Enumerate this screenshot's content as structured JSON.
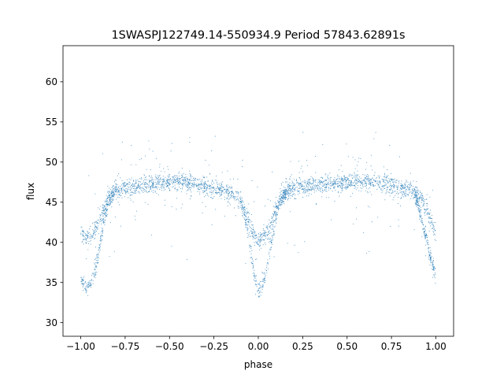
{
  "chart_data": {
    "type": "scatter",
    "title": "1SWASPJ122749.14-550934.9 Period 57843.62891s",
    "xlabel": "phase",
    "ylabel": "flux",
    "xlim": [
      -1.1,
      1.1
    ],
    "ylim": [
      28.3,
      64.5
    ],
    "xticks": [
      -1.0,
      -0.75,
      -0.5,
      -0.25,
      0.0,
      0.25,
      0.5,
      0.75,
      1.0
    ],
    "xtick_labels": [
      "−1.00",
      "−0.75",
      "−0.50",
      "−0.25",
      "0.00",
      "0.25",
      "0.50",
      "0.75",
      "1.00"
    ],
    "yticks": [
      30,
      35,
      40,
      45,
      50,
      55,
      60
    ],
    "ytick_labels": [
      "30",
      "35",
      "40",
      "45",
      "50",
      "55",
      "60"
    ],
    "grid": false,
    "legend": "none",
    "point_color": "#1f77b4",
    "series": [
      {
        "phase": [
          -1.0,
          -0.97,
          -0.94,
          -0.9,
          -0.85,
          -0.8,
          -0.7,
          -0.6,
          -0.5,
          -0.4,
          -0.3,
          -0.2,
          -0.15,
          -0.1,
          -0.07,
          -0.03,
          0.0,
          0.03,
          0.06,
          0.1,
          0.13,
          0.17,
          0.2,
          0.25,
          0.35,
          0.45,
          0.55,
          0.65,
          0.75,
          0.85,
          0.9,
          0.93,
          0.96,
          1.0
        ],
        "flux": [
          41.0,
          40.5,
          40.8,
          42.5,
          45.0,
          46.5,
          47.0,
          47.3,
          47.6,
          47.5,
          47.0,
          46.6,
          46.0,
          45.2,
          43.5,
          41.2,
          40.2,
          40.6,
          41.5,
          44.0,
          45.8,
          46.5,
          46.8,
          46.9,
          47.2,
          47.4,
          47.6,
          47.4,
          47.1,
          46.6,
          46.0,
          45.0,
          43.5,
          41.2
        ]
      },
      {
        "phase": [
          -1.0,
          -0.97,
          -0.94,
          -0.9,
          -0.87,
          -0.84,
          -0.8,
          -0.1,
          -0.07,
          -0.04,
          -0.02,
          0.0,
          0.02,
          0.04,
          0.07,
          0.1,
          0.13,
          0.16,
          0.2,
          0.88,
          0.91,
          0.94,
          0.97,
          1.0
        ],
        "flux": [
          35.5,
          34.2,
          34.8,
          38.5,
          42.5,
          45.5,
          46.5,
          45.0,
          42.5,
          38.5,
          35.5,
          34.0,
          34.2,
          36.0,
          39.5,
          43.0,
          45.5,
          46.3,
          46.8,
          46.0,
          44.0,
          41.0,
          38.0,
          36.0
        ]
      }
    ]
  }
}
